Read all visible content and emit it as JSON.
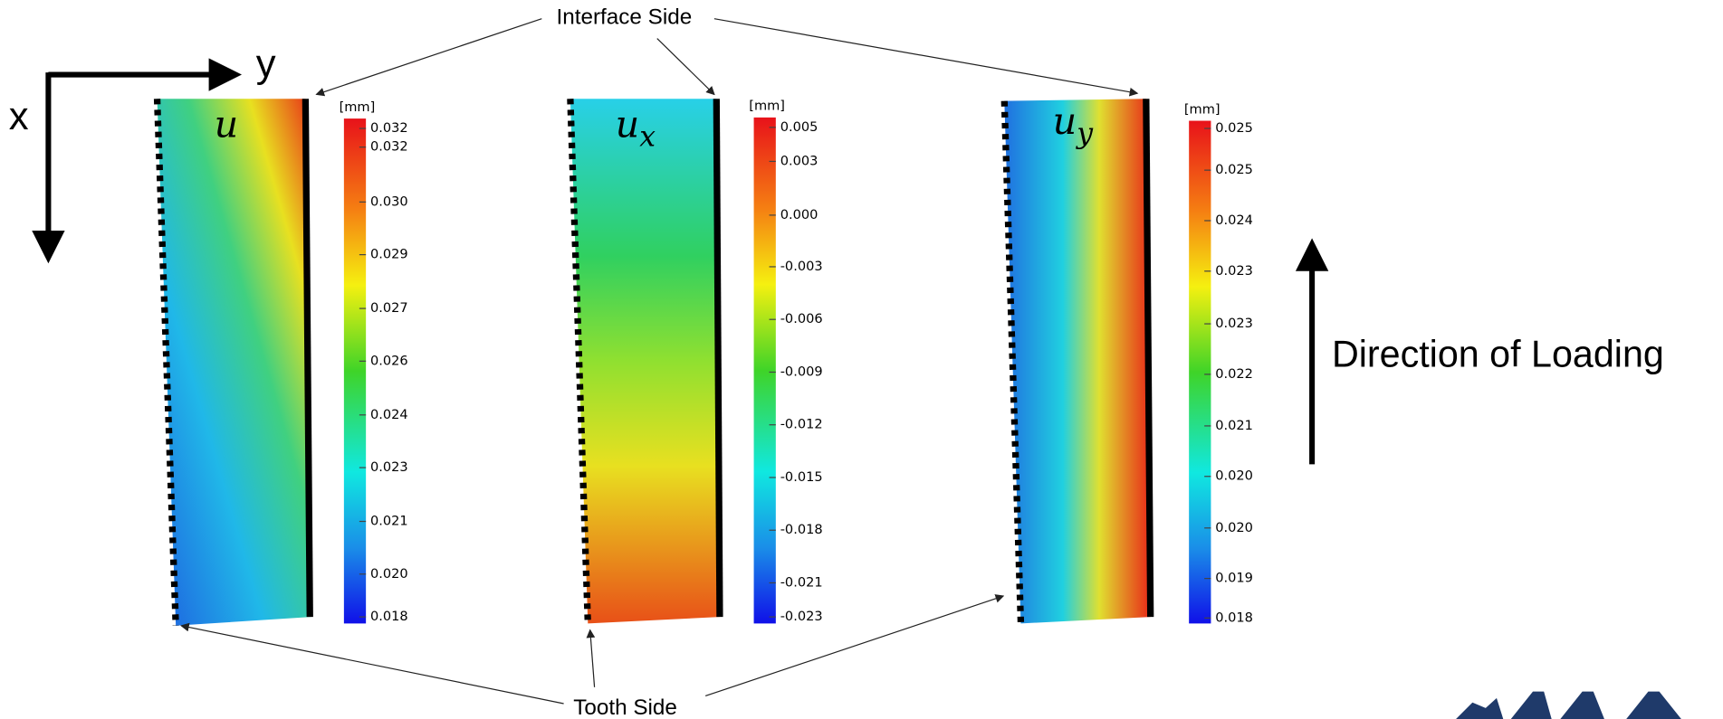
{
  "axes": {
    "x": "x",
    "y": "y"
  },
  "annotations": {
    "interface": "Interface Side",
    "tooth": "Tooth Side",
    "loading": "Direction of Loading"
  },
  "panels": [
    {
      "symbol": "u",
      "unit": "[mm]",
      "ticks": [
        "0.032",
        "0.032",
        "0.030",
        "0.029",
        "0.027",
        "0.026",
        "0.024",
        "0.023",
        "0.021",
        "0.020",
        "0.018"
      ]
    },
    {
      "symbol": "u",
      "subscript": "x",
      "unit": "[mm]",
      "ticks": [
        "0.005",
        "0.003",
        "0.000",
        "-0.003",
        "-0.006",
        "-0.009",
        "-0.012",
        "-0.015",
        "-0.018",
        "-0.021",
        "-0.023"
      ]
    },
    {
      "symbol": "u",
      "subscript": "y",
      "unit": "[mm]",
      "ticks": [
        "0.025",
        "0.025",
        "0.024",
        "0.023",
        "0.023",
        "0.022",
        "0.021",
        "0.020",
        "0.020",
        "0.019",
        "0.018"
      ]
    }
  ]
}
